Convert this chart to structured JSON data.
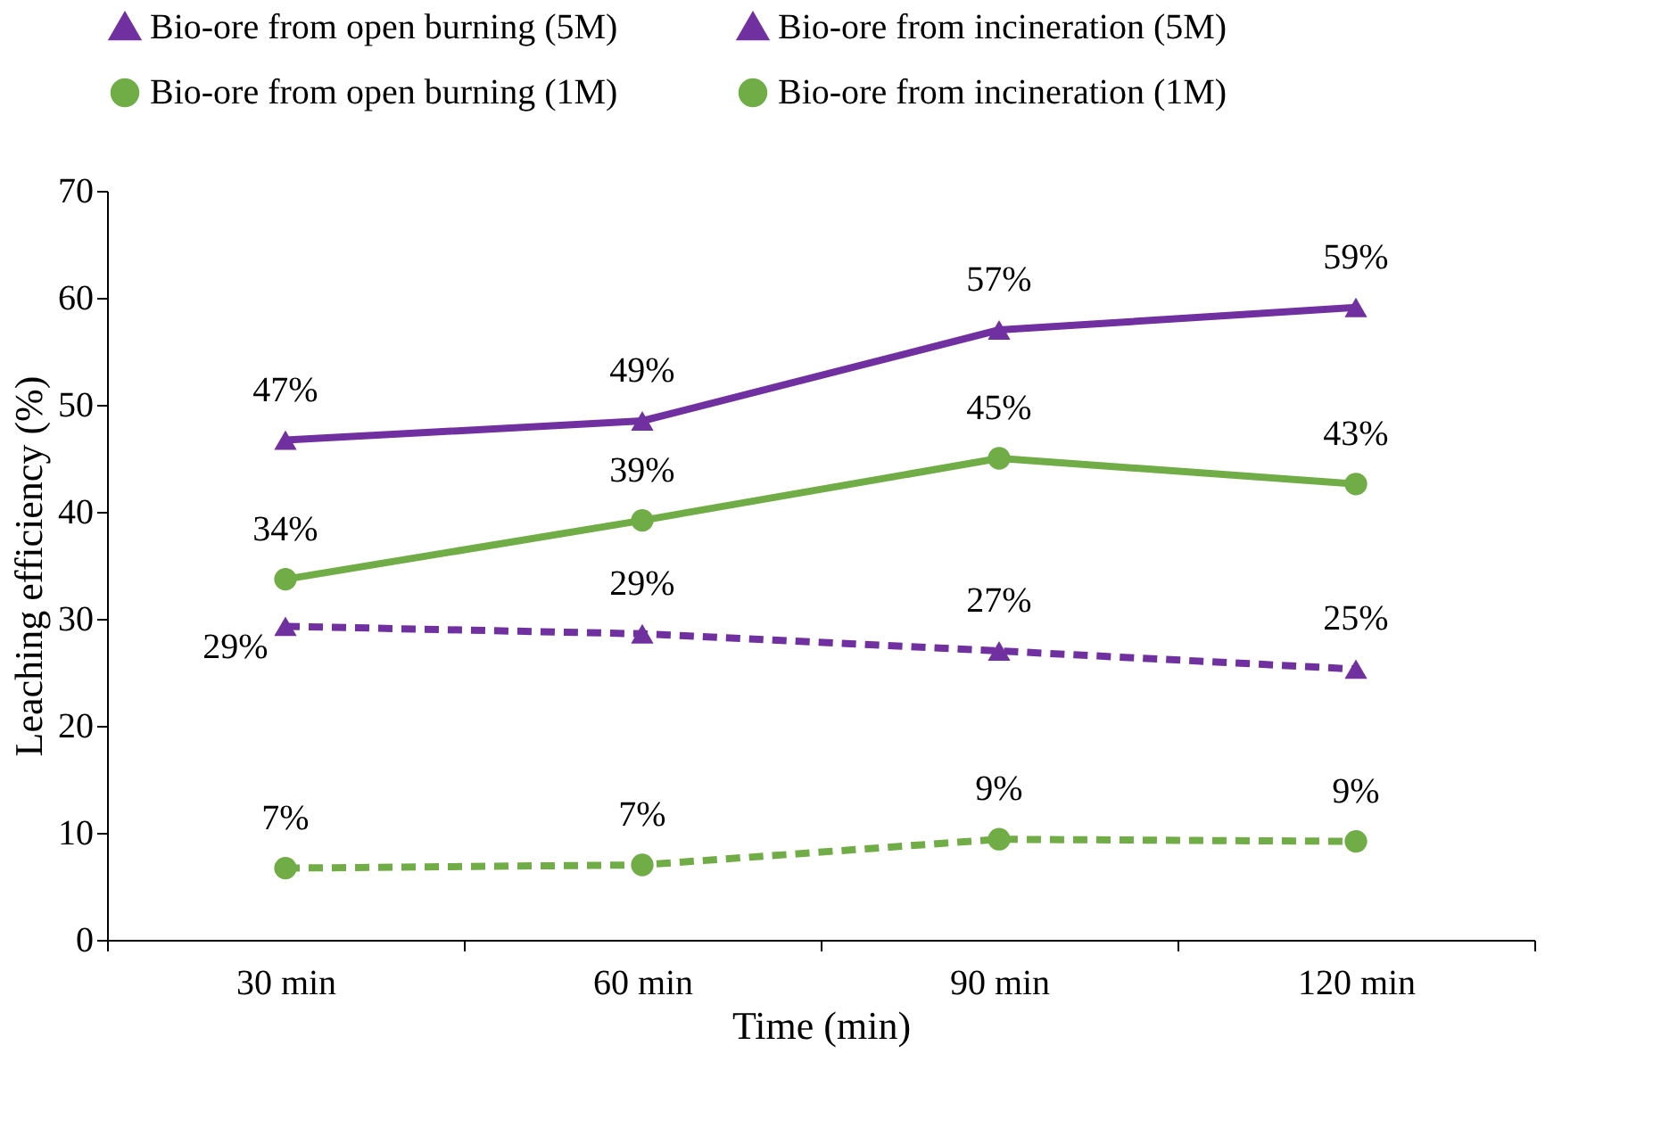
{
  "chart_data": {
    "type": "line",
    "xlabel": "Time (min)",
    "ylabel": "Leaching efficiency (%)",
    "categories": [
      "30 min",
      "60 min",
      "90 min",
      "120 min"
    ],
    "ylim": [
      0,
      70
    ],
    "yticks": [
      0,
      10,
      20,
      30,
      40,
      50,
      60,
      70
    ],
    "grid": false,
    "legend": "top",
    "series": [
      {
        "name": "Bio-ore from open burning (5M)",
        "color": "#7030a0",
        "marker": "triangle",
        "line_style": "solid",
        "values": [
          46.7,
          48.5,
          57,
          59.1
        ],
        "value_labels": [
          "47%",
          "49%",
          "57%",
          "59%"
        ]
      },
      {
        "name": "Bio-ore from incineration (5M)",
        "color": "#7030a0",
        "marker": "triangle",
        "line_style": "dashed",
        "values": [
          29.3,
          28.6,
          27,
          25.3
        ],
        "value_labels": [
          "29%",
          "29%",
          "27%",
          "25%"
        ]
      },
      {
        "name": "Bio-ore from open burning (1M)",
        "color": "#70ad47",
        "marker": "circle",
        "line_style": "solid",
        "values": [
          33.7,
          39.2,
          45,
          42.6
        ],
        "value_labels": [
          "34%",
          "39%",
          "45%",
          "43%"
        ]
      },
      {
        "name": "Bio-ore from incineration (1M)",
        "color": "#70ad47",
        "marker": "circle",
        "line_style": "dashed",
        "values": [
          6.7,
          7.0,
          9.4,
          9.2
        ],
        "value_labels": [
          "7%",
          "7%",
          "9%",
          "9%"
        ]
      }
    ]
  }
}
